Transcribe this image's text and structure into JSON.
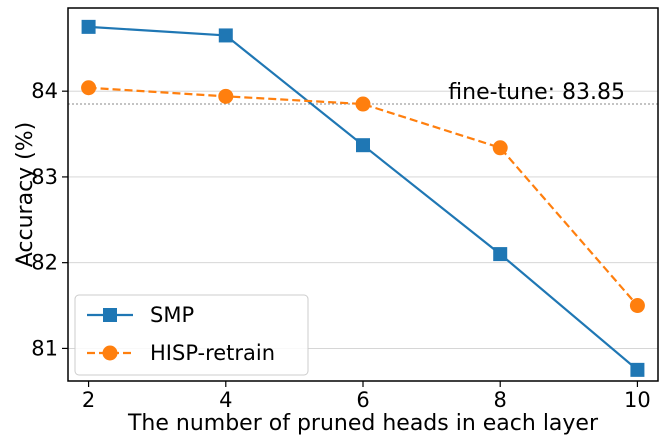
{
  "chart_data": {
    "type": "line",
    "title": "",
    "xlabel": "The number of pruned heads in each layer",
    "ylabel": "Accuracy (%)",
    "x": [
      2,
      4,
      6,
      8,
      10
    ],
    "xticks": [
      "2",
      "4",
      "6",
      "8",
      "10"
    ],
    "yticks": [
      "81",
      "82",
      "83",
      "84"
    ],
    "xlim": [
      1.7,
      10.3
    ],
    "ylim": [
      80.62,
      84.97
    ],
    "grid": "horizontal",
    "legend_position": "lower-left",
    "series": [
      {
        "name": "SMP",
        "values": [
          84.75,
          84.65,
          83.37,
          82.1,
          80.75
        ],
        "color": "#1f77b4",
        "marker": "square",
        "linestyle": "solid"
      },
      {
        "name": "HISP-retrain",
        "values": [
          84.04,
          83.94,
          83.85,
          83.34,
          81.5
        ],
        "color": "#ff7f0e",
        "marker": "circle",
        "linestyle": "dashed"
      }
    ],
    "reference_line": {
      "label": "fine-tune: 83.85",
      "value": 83.85,
      "color": "#888888"
    }
  }
}
